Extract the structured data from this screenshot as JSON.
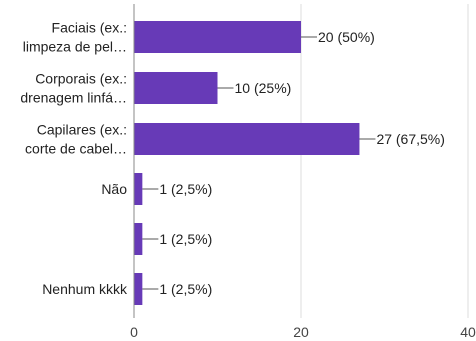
{
  "chart_data": {
    "type": "bar",
    "orientation": "horizontal",
    "categories": [
      [
        "Faciais (ex.:",
        "limpeza de pel…"
      ],
      [
        "Corporais (ex.:",
        "drenagem linfá…"
      ],
      [
        "Capilares (ex.:",
        "corte de cabel…"
      ],
      [
        "Não"
      ],
      [
        ""
      ],
      [
        "Nenhum kkkk"
      ]
    ],
    "values": [
      20,
      10,
      27,
      1,
      1,
      1
    ],
    "data_labels": [
      "20 (50%)",
      "10 (25%)",
      "27 (67,5%)",
      "1 (2,5%)",
      "1 (2,5%)",
      "1 (2,5%)"
    ],
    "xlim": [
      0,
      40
    ],
    "xticks": [
      0,
      20,
      40
    ],
    "xtick_labels": [
      "0",
      "20",
      "40"
    ],
    "grid": "vertical",
    "legend": "none",
    "colors": {
      "bar": "#673ab7",
      "grid": "#dddddd",
      "axis": "#888888"
    }
  }
}
